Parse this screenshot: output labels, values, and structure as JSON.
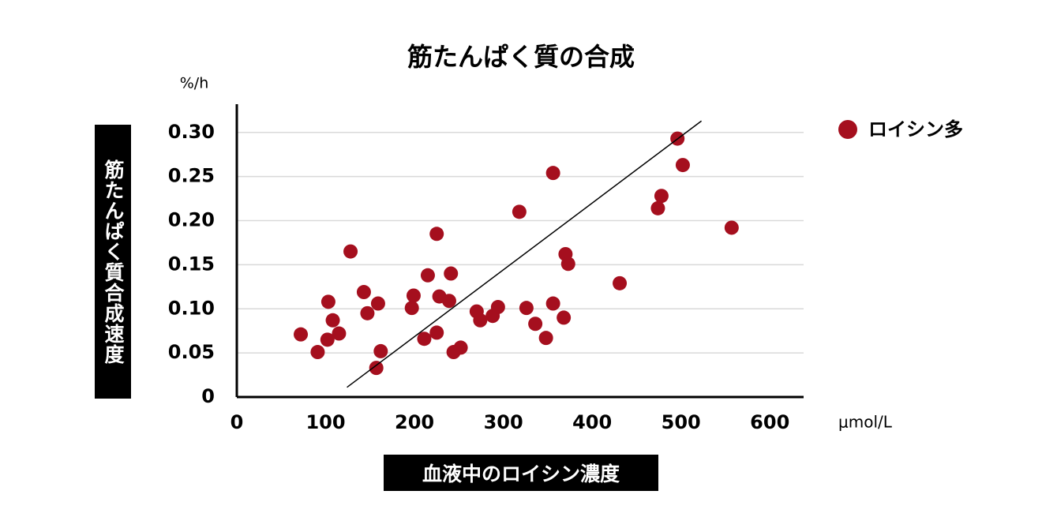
{
  "chart_data": {
    "type": "scatter",
    "title": "筋たんぱく質の合成",
    "y_label": "筋たんぱく質合成速度",
    "x_label": "血液中のロイシン濃度",
    "y_unit": "%/h",
    "x_unit": "μmol/L",
    "series": [
      {
        "name": "ロイシン多",
        "color": "#a50f1e",
        "x": [
          72,
          91,
          103,
          102,
          108,
          115,
          128,
          143,
          147,
          159,
          157,
          162,
          199,
          197,
          211,
          215,
          225,
          225,
          228,
          239,
          241,
          244,
          252,
          270,
          274,
          288,
          294,
          318,
          326,
          336,
          348,
          356,
          356,
          368,
          370,
          373,
          431,
          474,
          478,
          496,
          502,
          557
        ],
        "values": [
          0.071,
          0.051,
          0.108,
          0.065,
          0.087,
          0.072,
          0.165,
          0.119,
          0.095,
          0.106,
          0.033,
          0.052,
          0.115,
          0.101,
          0.066,
          0.138,
          0.185,
          0.073,
          0.114,
          0.109,
          0.14,
          0.051,
          0.056,
          0.097,
          0.087,
          0.092,
          0.102,
          0.21,
          0.101,
          0.083,
          0.067,
          0.254,
          0.106,
          0.09,
          0.162,
          0.151,
          0.129,
          0.214,
          0.228,
          0.293,
          0.263,
          0.192
        ]
      }
    ],
    "trendline": {
      "x": [
        124,
        523
      ],
      "y": [
        0.011,
        0.313
      ]
    },
    "xlim": [
      0,
      638
    ],
    "ylim": [
      0,
      0.332
    ],
    "xticks": [
      0,
      100,
      200,
      300,
      400,
      500,
      600
    ],
    "yticks": [
      0,
      0.05,
      {
        "value": 0.1,
        "label": "0.10"
      },
      0.15,
      {
        "value": 0.2,
        "label": "0.20"
      },
      0.25,
      {
        "value": 0.3,
        "label": "0.30"
      }
    ],
    "grid": true
  }
}
